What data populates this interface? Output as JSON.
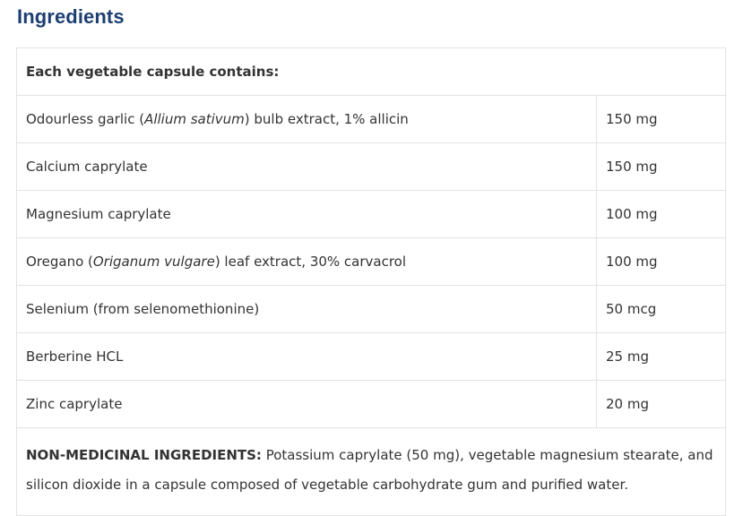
{
  "heading": "Ingredients",
  "table": {
    "header": "Each vegetable capsule contains:",
    "rows": [
      {
        "pre": "Odourless garlic (",
        "latin": "Allium sativum",
        "post": ") bulb extract, 1% allicin",
        "amount": "150 mg"
      },
      {
        "pre": "Calcium caprylate",
        "latin": "",
        "post": "",
        "amount": "150 mg"
      },
      {
        "pre": "Magnesium caprylate",
        "latin": "",
        "post": "",
        "amount": "100 mg"
      },
      {
        "pre": "Oregano (",
        "latin": "Origanum vulgare",
        "post": ") leaf extract, 30% carvacrol",
        "amount": "100 mg"
      },
      {
        "pre": "Selenium (from selenomethionine)",
        "latin": "",
        "post": "",
        "amount": "50 mcg"
      },
      {
        "pre": "Berberine HCL",
        "latin": "",
        "post": "",
        "amount": "25 mg"
      },
      {
        "pre": "Zinc caprylate",
        "latin": "",
        "post": "",
        "amount": "20 mg"
      }
    ],
    "non_medicinal_label": "NON-MEDICINAL INGREDIENTS:",
    "non_medicinal_text": " Potassium caprylate (50 mg), vegetable magnesium stearate, and silicon dioxide in a capsule composed of vegetable carbohydrate gum and purified water."
  },
  "colors": {
    "heading": "#1d3f73",
    "text": "#333333",
    "border": "#e3e3e3"
  }
}
